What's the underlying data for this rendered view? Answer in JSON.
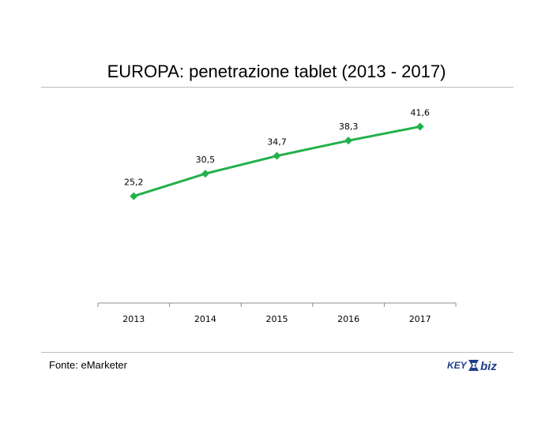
{
  "title": "EUROPA: penetrazione tablet (2013 - 2017)",
  "source": "Fonte: eMarketer",
  "logo": {
    "text_left": "KEY",
    "text_right": "biz",
    "color": "#1f3d8c"
  },
  "colors": {
    "line": "#22b04b",
    "axis": "#8c8c8c"
  },
  "chart_data": {
    "type": "line",
    "categories": [
      "2013",
      "2014",
      "2015",
      "2016",
      "2017"
    ],
    "series": [
      {
        "values": [
          25.2,
          30.5,
          34.7,
          38.3,
          41.6
        ]
      }
    ],
    "data_labels": [
      "25,2",
      "30,5",
      "34,7",
      "38,3",
      "41,6"
    ],
    "ylim": [
      0,
      49.5
    ],
    "grid": false,
    "legend": "none"
  }
}
